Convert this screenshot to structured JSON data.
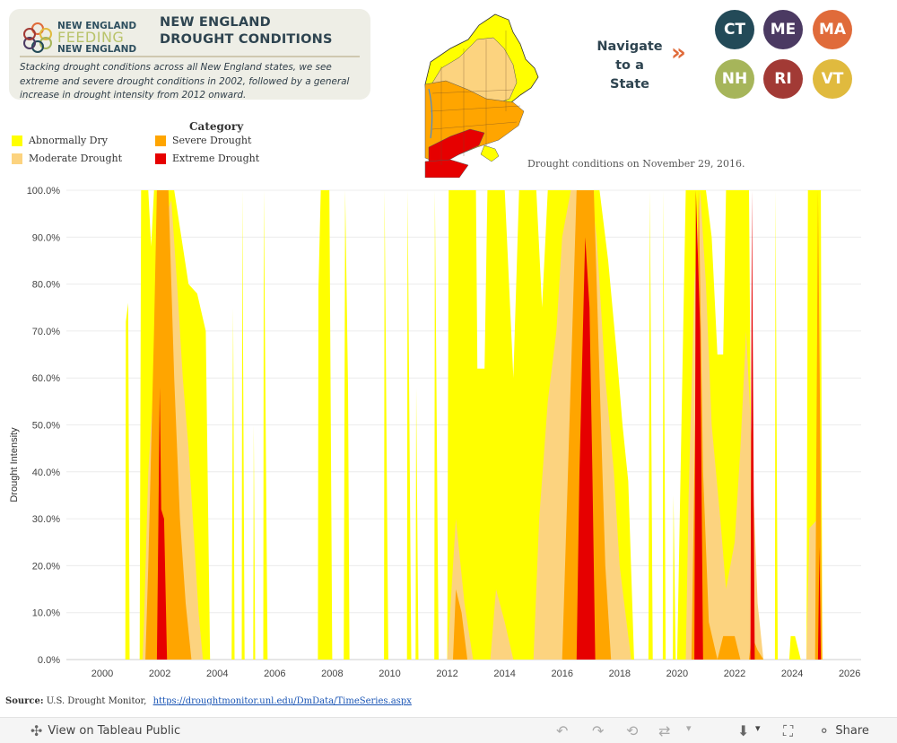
{
  "header": {
    "logo_line1": "NEW ENGLAND",
    "logo_line2": "FEEDING",
    "logo_line3": "NEW ENGLAND",
    "title_line1": "NEW ENGLAND",
    "title_line2": "DROUGHT CONDITIONS",
    "subtitle": "Stacking drought conditions across all New England states, we see extreme and severe drought conditions in 2002, followed by a general increase in drought intensity from 2012 onward."
  },
  "map": {
    "caption": "Drought conditions on November 29, 2016."
  },
  "nav": {
    "label_line1": "Navigate",
    "label_line2": "to a State",
    "arrow": "»",
    "states": [
      {
        "abbr": "CT",
        "color": "#234a58"
      },
      {
        "abbr": "ME",
        "color": "#4b3a62"
      },
      {
        "abbr": "MA",
        "color": "#e06b3a"
      },
      {
        "abbr": "NH",
        "color": "#a6b55a"
      },
      {
        "abbr": "RI",
        "color": "#a23a35"
      },
      {
        "abbr": "VT",
        "color": "#e0ba3e"
      }
    ]
  },
  "legend": {
    "title": "Category",
    "items": [
      {
        "label": "Abnormally Dry",
        "color": "#ffff00"
      },
      {
        "label": "Severe Drought",
        "color": "#ffa500"
      },
      {
        "label": "Moderate Drought",
        "color": "#fcd37f"
      },
      {
        "label": "Extreme Drought",
        "color": "#e60000"
      }
    ]
  },
  "chart_data": {
    "type": "area",
    "ylabel": "Drought Intensity",
    "xlabel": "",
    "ylim": [
      0,
      100
    ],
    "xlim": [
      1998.75,
      2026.4
    ],
    "y_ticks": [
      "0.0%",
      "10.0%",
      "20.0%",
      "30.0%",
      "40.0%",
      "50.0%",
      "60.0%",
      "70.0%",
      "80.0%",
      "90.0%",
      "100.0%"
    ],
    "x_ticks": [
      "2000",
      "2002",
      "2004",
      "2006",
      "2008",
      "2010",
      "2012",
      "2014",
      "2016",
      "2018",
      "2020",
      "2022",
      "2024",
      "2026"
    ],
    "series": [
      {
        "name": "Abnormally Dry",
        "color": "#ffff00",
        "points": [
          [
            2000.8,
            0
          ],
          [
            2000.82,
            72
          ],
          [
            2000.9,
            76
          ],
          [
            2000.95,
            0
          ],
          [
            2001.3,
            0
          ],
          [
            2001.35,
            100
          ],
          [
            2001.6,
            100
          ],
          [
            2001.7,
            88
          ],
          [
            2001.8,
            100
          ],
          [
            2002.5,
            100
          ],
          [
            2002.6,
            96
          ],
          [
            2003.0,
            80
          ],
          [
            2003.3,
            78
          ],
          [
            2003.6,
            70
          ],
          [
            2003.75,
            0
          ],
          [
            2004.5,
            0
          ],
          [
            2004.55,
            75
          ],
          [
            2004.6,
            0
          ],
          [
            2004.85,
            0
          ],
          [
            2004.87,
            100
          ],
          [
            2004.95,
            0
          ],
          [
            2005.25,
            0
          ],
          [
            2005.27,
            50
          ],
          [
            2005.32,
            0
          ],
          [
            2005.6,
            0
          ],
          [
            2005.62,
            100
          ],
          [
            2005.75,
            0
          ],
          [
            2007.5,
            0
          ],
          [
            2007.52,
            79
          ],
          [
            2007.6,
            100
          ],
          [
            2007.9,
            100
          ],
          [
            2008.0,
            0
          ],
          [
            2008.4,
            0
          ],
          [
            2008.45,
            100
          ],
          [
            2008.55,
            58
          ],
          [
            2008.6,
            0
          ],
          [
            2009.8,
            0
          ],
          [
            2009.82,
            100
          ],
          [
            2009.95,
            0
          ],
          [
            2010.6,
            0
          ],
          [
            2010.62,
            100
          ],
          [
            2010.75,
            0
          ],
          [
            2010.9,
            0
          ],
          [
            2010.92,
            58
          ],
          [
            2011.0,
            0
          ],
          [
            2011.55,
            0
          ],
          [
            2011.57,
            100
          ],
          [
            2011.7,
            0
          ],
          [
            2012.0,
            0
          ],
          [
            2012.05,
            100
          ],
          [
            2013.0,
            100
          ],
          [
            2013.05,
            62
          ],
          [
            2013.3,
            62
          ],
          [
            2013.4,
            100
          ],
          [
            2014.0,
            100
          ],
          [
            2014.3,
            60
          ],
          [
            2014.5,
            100
          ],
          [
            2015.1,
            100
          ],
          [
            2015.3,
            75
          ],
          [
            2015.5,
            100
          ],
          [
            2016.9,
            100
          ],
          [
            2017.3,
            100
          ],
          [
            2017.6,
            85
          ],
          [
            2017.9,
            65
          ],
          [
            2018.1,
            50
          ],
          [
            2018.3,
            38
          ],
          [
            2018.5,
            0
          ],
          [
            2019.0,
            0
          ],
          [
            2019.05,
            100
          ],
          [
            2019.15,
            0
          ],
          [
            2019.5,
            0
          ],
          [
            2019.52,
            100
          ],
          [
            2019.6,
            0
          ],
          [
            2019.85,
            0
          ],
          [
            2019.87,
            35
          ],
          [
            2019.95,
            0
          ],
          [
            2020.0,
            0
          ],
          [
            2020.3,
            100
          ],
          [
            2021.0,
            100
          ],
          [
            2021.2,
            90
          ],
          [
            2021.4,
            65
          ],
          [
            2021.6,
            65
          ],
          [
            2021.7,
            100
          ],
          [
            2022.0,
            100
          ],
          [
            2022.3,
            100
          ],
          [
            2022.5,
            100
          ],
          [
            2022.6,
            20
          ],
          [
            2022.8,
            5
          ],
          [
            2023.0,
            0
          ],
          [
            2023.4,
            0
          ],
          [
            2023.42,
            100
          ],
          [
            2023.5,
            0
          ],
          [
            2023.9,
            0
          ],
          [
            2023.95,
            5
          ],
          [
            2024.1,
            5
          ],
          [
            2024.3,
            0
          ],
          [
            2024.5,
            0
          ],
          [
            2024.55,
            100
          ],
          [
            2025.0,
            100
          ],
          [
            2025.05,
            0
          ]
        ]
      },
      {
        "name": "Moderate Drought",
        "color": "#fcd37f",
        "points": [
          [
            2001.4,
            0
          ],
          [
            2001.45,
            8
          ],
          [
            2001.6,
            40
          ],
          [
            2001.8,
            60
          ],
          [
            2002.0,
            90
          ],
          [
            2002.4,
            98
          ],
          [
            2002.6,
            80
          ],
          [
            2002.8,
            60
          ],
          [
            2003.0,
            45
          ],
          [
            2003.2,
            25
          ],
          [
            2003.35,
            10
          ],
          [
            2003.5,
            0
          ],
          [
            2012.0,
            0
          ],
          [
            2012.1,
            10
          ],
          [
            2012.3,
            30
          ],
          [
            2012.6,
            12
          ],
          [
            2012.9,
            0
          ],
          [
            2013.5,
            0
          ],
          [
            2013.7,
            15
          ],
          [
            2014.0,
            8
          ],
          [
            2014.3,
            0
          ],
          [
            2015.0,
            0
          ],
          [
            2015.2,
            30
          ],
          [
            2015.5,
            55
          ],
          [
            2015.8,
            70
          ],
          [
            2016.0,
            90
          ],
          [
            2016.3,
            100
          ],
          [
            2017.0,
            100
          ],
          [
            2017.2,
            90
          ],
          [
            2017.5,
            60
          ],
          [
            2017.8,
            40
          ],
          [
            2018.0,
            20
          ],
          [
            2018.2,
            10
          ],
          [
            2018.4,
            0
          ],
          [
            2020.3,
            0
          ],
          [
            2020.4,
            35
          ],
          [
            2020.6,
            80
          ],
          [
            2020.8,
            100
          ],
          [
            2021.0,
            80
          ],
          [
            2021.2,
            50
          ],
          [
            2021.5,
            30
          ],
          [
            2021.7,
            15
          ],
          [
            2022.0,
            25
          ],
          [
            2022.2,
            45
          ],
          [
            2022.4,
            70
          ],
          [
            2022.6,
            45
          ],
          [
            2022.8,
            12
          ],
          [
            2023.0,
            0
          ],
          [
            2024.5,
            0
          ],
          [
            2024.6,
            28
          ],
          [
            2024.9,
            30
          ],
          [
            2025.0,
            0
          ]
        ]
      },
      {
        "name": "Severe Drought",
        "color": "#ffa500",
        "points": [
          [
            2001.5,
            0
          ],
          [
            2001.6,
            20
          ],
          [
            2001.8,
            70
          ],
          [
            2001.9,
            100
          ],
          [
            2002.3,
            100
          ],
          [
            2002.5,
            60
          ],
          [
            2002.7,
            30
          ],
          [
            2002.9,
            12
          ],
          [
            2003.1,
            0
          ],
          [
            2012.2,
            0
          ],
          [
            2012.3,
            15
          ],
          [
            2012.5,
            10
          ],
          [
            2012.7,
            0
          ],
          [
            2016.0,
            0
          ],
          [
            2016.2,
            40
          ],
          [
            2016.5,
            100
          ],
          [
            2017.1,
            100
          ],
          [
            2017.3,
            60
          ],
          [
            2017.5,
            20
          ],
          [
            2017.7,
            0
          ],
          [
            2020.5,
            0
          ],
          [
            2020.6,
            40
          ],
          [
            2020.75,
            100
          ],
          [
            2020.9,
            40
          ],
          [
            2021.1,
            8
          ],
          [
            2021.4,
            0
          ],
          [
            2021.6,
            5
          ],
          [
            2022.0,
            5
          ],
          [
            2022.2,
            0
          ],
          [
            2022.5,
            0
          ],
          [
            2022.6,
            5
          ],
          [
            2022.8,
            2
          ],
          [
            2023.0,
            0
          ],
          [
            2024.8,
            0
          ],
          [
            2024.9,
            100
          ],
          [
            2025.05,
            0
          ]
        ]
      },
      {
        "name": "Extreme Drought",
        "color": "#e60000",
        "points": [
          [
            2001.9,
            0
          ],
          [
            2001.95,
            28
          ],
          [
            2002.0,
            58
          ],
          [
            2002.05,
            32
          ],
          [
            2002.15,
            30
          ],
          [
            2002.25,
            0
          ],
          [
            2016.5,
            0
          ],
          [
            2016.6,
            40
          ],
          [
            2016.8,
            90
          ],
          [
            2016.95,
            75
          ],
          [
            2017.05,
            40
          ],
          [
            2017.15,
            0
          ],
          [
            2020.6,
            0
          ],
          [
            2020.65,
            100
          ],
          [
            2020.8,
            70
          ],
          [
            2020.9,
            0
          ],
          [
            2022.55,
            0
          ],
          [
            2022.6,
            100
          ],
          [
            2022.7,
            0
          ],
          [
            2024.9,
            0
          ],
          [
            2024.95,
            24
          ],
          [
            2025.0,
            0
          ]
        ]
      }
    ]
  },
  "source": {
    "label": "Source:",
    "text": "U.S. Drought Monitor,",
    "url_text": "https://droughtmonitor.unl.edu/DmData/TimeSeries.aspx"
  },
  "toolbar": {
    "view_label": "View on Tableau Public",
    "share_label": "Share",
    "undo_icon": "↶",
    "redo_icon": "↷",
    "revert_icon": "⟲",
    "refresh_icon": "⇄",
    "dropdown_icon": "▾",
    "download_icon": "⬇",
    "fullscreen_icon": "⛶",
    "share_icon": "⚬",
    "tableau_icon": "✣"
  }
}
